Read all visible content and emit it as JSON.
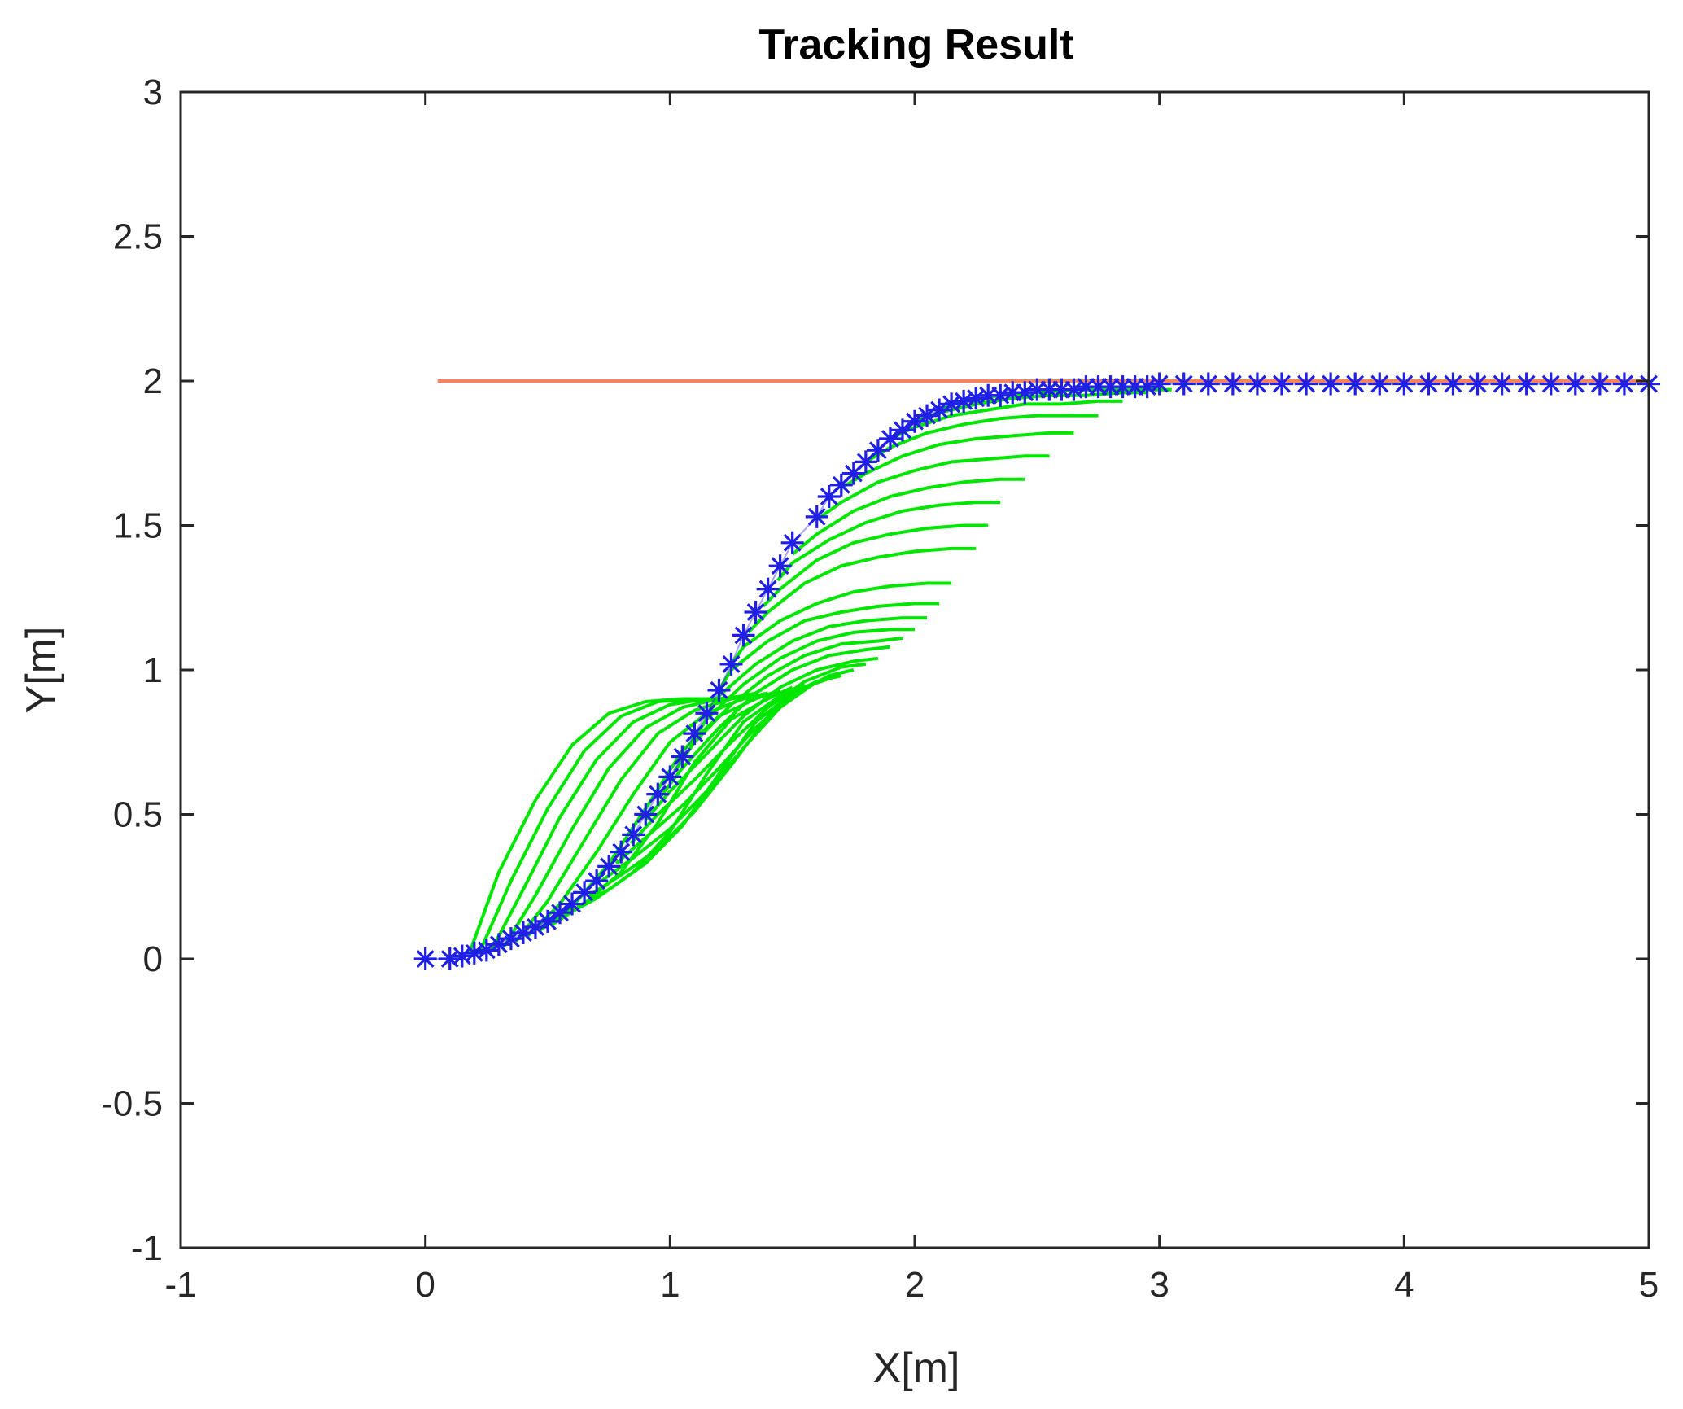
{
  "chart_data": {
    "type": "line",
    "title": "Tracking Result",
    "xlabel": "X[m]",
    "ylabel": "Y[m]",
    "xlim": [
      -1,
      5
    ],
    "ylim": [
      -1,
      3
    ],
    "xticks": [
      "-1",
      "0",
      "1",
      "2",
      "3",
      "4",
      "5"
    ],
    "yticks": [
      "-1",
      "-0.5",
      "0",
      "0.5",
      "1",
      "1.5",
      "2",
      "2.5",
      "3"
    ],
    "grid": false,
    "legend": "none",
    "series": [
      {
        "kind": "reference",
        "color": "#f4845f",
        "x": [
          0.05,
          5.0
        ],
        "y": [
          2.0,
          2.0
        ]
      },
      {
        "kind": "markers",
        "marker": "*",
        "color": "#1f1fe6",
        "x": [
          0.0,
          0.1,
          0.15,
          0.2,
          0.25,
          0.3,
          0.35,
          0.4,
          0.45,
          0.5,
          0.55,
          0.6,
          0.65,
          0.7,
          0.75,
          0.8,
          0.85,
          0.9,
          0.95,
          1.0,
          1.05,
          1.1,
          1.15,
          1.2,
          1.25,
          1.3,
          1.35,
          1.4,
          1.45,
          1.5,
          1.6,
          1.65,
          1.7,
          1.75,
          1.8,
          1.85,
          1.9,
          1.95,
          2.0,
          2.05,
          2.1,
          2.15,
          2.2,
          2.25,
          2.3,
          2.35,
          2.4,
          2.45,
          2.5,
          2.55,
          2.6,
          2.65,
          2.7,
          2.75,
          2.8,
          2.85,
          2.9,
          2.95,
          3.0,
          3.1,
          3.2,
          3.3,
          3.4,
          3.5,
          3.6,
          3.7,
          3.8,
          3.9,
          4.0,
          4.1,
          4.2,
          4.3,
          4.4,
          4.5,
          4.6,
          4.7,
          4.8,
          4.9,
          5.0
        ],
        "y": [
          0.0,
          0.0,
          0.01,
          0.02,
          0.03,
          0.05,
          0.07,
          0.09,
          0.11,
          0.13,
          0.16,
          0.19,
          0.23,
          0.27,
          0.32,
          0.37,
          0.43,
          0.5,
          0.57,
          0.63,
          0.7,
          0.78,
          0.85,
          0.93,
          1.02,
          1.12,
          1.2,
          1.28,
          1.36,
          1.44,
          1.53,
          1.6,
          1.64,
          1.68,
          1.72,
          1.76,
          1.8,
          1.83,
          1.86,
          1.88,
          1.9,
          1.92,
          1.93,
          1.94,
          1.95,
          1.95,
          1.96,
          1.96,
          1.97,
          1.97,
          1.97,
          1.97,
          1.98,
          1.98,
          1.98,
          1.98,
          1.98,
          1.98,
          1.99,
          1.99,
          1.99,
          1.99,
          1.99,
          1.99,
          1.99,
          1.99,
          1.99,
          1.99,
          1.99,
          1.99,
          1.99,
          1.99,
          1.99,
          1.99,
          1.99,
          1.99,
          1.99,
          1.99,
          1.99
        ]
      },
      {
        "kind": "predicted-trajectories",
        "color": "#00e600",
        "curves": [
          {
            "x": [
              0.18,
              0.3,
              0.45,
              0.6,
              0.75,
              0.9,
              1.05,
              1.15
            ],
            "y": [
              0.02,
              0.3,
              0.55,
              0.74,
              0.85,
              0.89,
              0.9,
              0.9
            ]
          },
          {
            "x": [
              0.22,
              0.35,
              0.5,
              0.65,
              0.8,
              0.95,
              1.1,
              1.2
            ],
            "y": [
              0.02,
              0.27,
              0.52,
              0.72,
              0.84,
              0.89,
              0.9,
              0.9
            ]
          },
          {
            "x": [
              0.27,
              0.4,
              0.55,
              0.7,
              0.85,
              1.0,
              1.15,
              1.25
            ],
            "y": [
              0.03,
              0.24,
              0.49,
              0.69,
              0.82,
              0.88,
              0.9,
              0.9
            ]
          },
          {
            "x": [
              0.32,
              0.45,
              0.6,
              0.75,
              0.9,
              1.05,
              1.2,
              1.3
            ],
            "y": [
              0.04,
              0.22,
              0.45,
              0.66,
              0.8,
              0.87,
              0.9,
              0.91
            ]
          },
          {
            "x": [
              0.37,
              0.5,
              0.65,
              0.8,
              0.95,
              1.1,
              1.25,
              1.35
            ],
            "y": [
              0.06,
              0.2,
              0.41,
              0.62,
              0.78,
              0.86,
              0.9,
              0.92
            ]
          },
          {
            "x": [
              0.42,
              0.55,
              0.7,
              0.85,
              1.0,
              1.15,
              1.3,
              1.4
            ],
            "y": [
              0.08,
              0.19,
              0.37,
              0.57,
              0.75,
              0.85,
              0.9,
              0.92
            ]
          },
          {
            "x": [
              0.47,
              0.6,
              0.75,
              0.9,
              1.05,
              1.2,
              1.35,
              1.45
            ],
            "y": [
              0.1,
              0.18,
              0.33,
              0.52,
              0.72,
              0.84,
              0.9,
              0.93
            ]
          },
          {
            "x": [
              0.52,
              0.65,
              0.8,
              0.95,
              1.1,
              1.25,
              1.4,
              1.5
            ],
            "y": [
              0.12,
              0.19,
              0.3,
              0.47,
              0.68,
              0.83,
              0.9,
              0.94
            ]
          },
          {
            "x": [
              0.57,
              0.7,
              0.85,
              1.0,
              1.15,
              1.3,
              1.45,
              1.55
            ],
            "y": [
              0.15,
              0.21,
              0.3,
              0.44,
              0.64,
              0.82,
              0.91,
              0.95
            ]
          },
          {
            "x": [
              0.62,
              0.75,
              0.9,
              1.05,
              1.2,
              1.35,
              1.5,
              1.6
            ],
            "y": [
              0.18,
              0.24,
              0.33,
              0.46,
              0.64,
              0.82,
              0.92,
              0.96
            ]
          },
          {
            "x": [
              0.67,
              0.8,
              0.95,
              1.1,
              1.25,
              1.4,
              1.55,
              1.65
            ],
            "y": [
              0.22,
              0.29,
              0.38,
              0.51,
              0.67,
              0.84,
              0.94,
              0.97
            ]
          },
          {
            "x": [
              0.72,
              0.85,
              1.0,
              1.15,
              1.3,
              1.45,
              1.6,
              1.7
            ],
            "y": [
              0.27,
              0.35,
              0.45,
              0.58,
              0.73,
              0.87,
              0.96,
              0.98
            ]
          },
          {
            "x": [
              0.78,
              0.9,
              1.05,
              1.2,
              1.35,
              1.5,
              1.65,
              1.75
            ],
            "y": [
              0.33,
              0.42,
              0.53,
              0.66,
              0.8,
              0.91,
              0.98,
              1.0
            ]
          },
          {
            "x": [
              0.84,
              0.95,
              1.1,
              1.25,
              1.4,
              1.55,
              1.7,
              1.8
            ],
            "y": [
              0.4,
              0.5,
              0.62,
              0.75,
              0.87,
              0.96,
              1.01,
              1.02
            ]
          },
          {
            "x": [
              0.9,
              1.0,
              1.15,
              1.3,
              1.45,
              1.6,
              1.75,
              1.85
            ],
            "y": [
              0.48,
              0.58,
              0.71,
              0.84,
              0.94,
              1.0,
              1.03,
              1.04
            ]
          },
          {
            "x": [
              0.96,
              1.05,
              1.2,
              1.35,
              1.5,
              1.65,
              1.8,
              1.9
            ],
            "y": [
              0.56,
              0.66,
              0.8,
              0.92,
              1.0,
              1.05,
              1.07,
              1.08
            ]
          },
          {
            "x": [
              1.02,
              1.1,
              1.25,
              1.4,
              1.55,
              1.7,
              1.85,
              1.95
            ],
            "y": [
              0.65,
              0.75,
              0.88,
              0.98,
              1.05,
              1.09,
              1.1,
              1.11
            ]
          },
          {
            "x": [
              1.08,
              1.15,
              1.3,
              1.45,
              1.6,
              1.75,
              1.9,
              2.0
            ],
            "y": [
              0.74,
              0.83,
              0.95,
              1.04,
              1.1,
              1.13,
              1.14,
              1.14
            ]
          },
          {
            "x": [
              1.14,
              1.2,
              1.35,
              1.5,
              1.65,
              1.8,
              1.95,
              2.05
            ],
            "y": [
              0.83,
              0.91,
              1.02,
              1.1,
              1.15,
              1.17,
              1.18,
              1.18
            ]
          },
          {
            "x": [
              1.2,
              1.25,
              1.4,
              1.55,
              1.7,
              1.85,
              2.0,
              2.1
            ],
            "y": [
              0.93,
              1.0,
              1.1,
              1.17,
              1.2,
              1.22,
              1.23,
              1.23
            ]
          },
          {
            "x": [
              1.26,
              1.3,
              1.45,
              1.6,
              1.75,
              1.9,
              2.05,
              2.15
            ],
            "y": [
              1.03,
              1.08,
              1.17,
              1.23,
              1.27,
              1.29,
              1.3,
              1.3
            ]
          },
          {
            "x": [
              1.32,
              1.4,
              1.55,
              1.7,
              1.85,
              2.0,
              2.15,
              2.25
            ],
            "y": [
              1.13,
              1.2,
              1.3,
              1.36,
              1.39,
              1.41,
              1.42,
              1.42
            ]
          },
          {
            "x": [
              1.38,
              1.45,
              1.6,
              1.75,
              1.9,
              2.05,
              2.2,
              2.3
            ],
            "y": [
              1.22,
              1.28,
              1.38,
              1.44,
              1.47,
              1.49,
              1.5,
              1.5
            ]
          },
          {
            "x": [
              1.44,
              1.5,
              1.65,
              1.8,
              1.95,
              2.1,
              2.25,
              2.35
            ],
            "y": [
              1.31,
              1.37,
              1.45,
              1.51,
              1.55,
              1.57,
              1.58,
              1.58
            ]
          },
          {
            "x": [
              1.5,
              1.6,
              1.75,
              1.9,
              2.05,
              2.2,
              2.35,
              2.45
            ],
            "y": [
              1.4,
              1.47,
              1.55,
              1.6,
              1.63,
              1.65,
              1.66,
              1.66
            ]
          },
          {
            "x": [
              1.6,
              1.7,
              1.85,
              2.0,
              2.15,
              2.3,
              2.45,
              2.55
            ],
            "y": [
              1.52,
              1.58,
              1.65,
              1.69,
              1.72,
              1.73,
              1.74,
              1.74
            ]
          },
          {
            "x": [
              1.7,
              1.8,
              1.95,
              2.1,
              2.25,
              2.4,
              2.55,
              2.65
            ],
            "y": [
              1.63,
              1.68,
              1.74,
              1.78,
              1.8,
              1.81,
              1.82,
              1.82
            ]
          },
          {
            "x": [
              1.8,
              1.9,
              2.05,
              2.2,
              2.35,
              2.5,
              2.65,
              2.75
            ],
            "y": [
              1.72,
              1.77,
              1.82,
              1.85,
              1.87,
              1.88,
              1.88,
              1.88
            ]
          },
          {
            "x": [
              1.9,
              2.0,
              2.15,
              2.3,
              2.45,
              2.6,
              2.75,
              2.85
            ],
            "y": [
              1.8,
              1.84,
              1.88,
              1.9,
              1.92,
              1.92,
              1.93,
              1.93
            ]
          },
          {
            "x": [
              2.0,
              2.1,
              2.25,
              2.4,
              2.55,
              2.7,
              2.85,
              2.95
            ],
            "y": [
              1.86,
              1.89,
              1.92,
              1.94,
              1.95,
              1.95,
              1.96,
              1.96
            ]
          },
          {
            "x": [
              2.1,
              2.2,
              2.35,
              2.5,
              2.65,
              2.8,
              2.95,
              3.05
            ],
            "y": [
              1.9,
              1.93,
              1.95,
              1.96,
              1.97,
              1.97,
              1.97,
              1.97
            ]
          }
        ]
      }
    ]
  }
}
